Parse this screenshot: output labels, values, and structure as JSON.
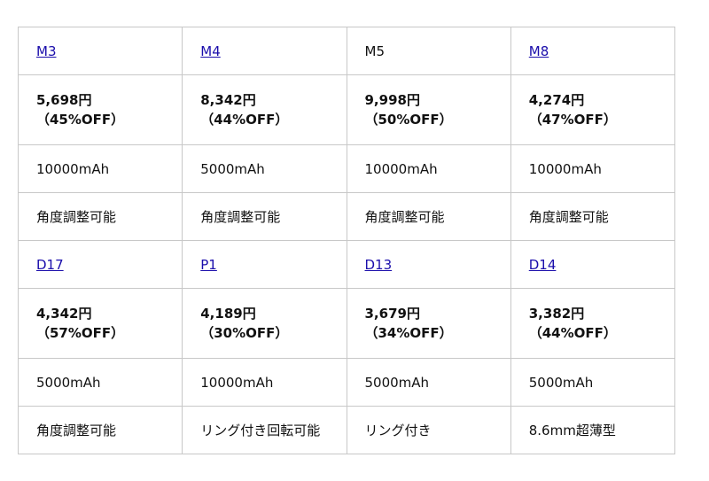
{
  "groups": [
    {
      "products": [
        {
          "name": "M3",
          "link": true,
          "price": "5,698円",
          "discount": "（45%OFF）",
          "capacity": "10000mAh",
          "feature": "角度調整可能"
        },
        {
          "name": "M4",
          "link": true,
          "price": "8,342円",
          "discount": "（44%OFF）",
          "capacity": "5000mAh",
          "feature": "角度調整可能"
        },
        {
          "name": "M5",
          "link": false,
          "price": "9,998円",
          "discount": "（50%OFF）",
          "capacity": "10000mAh",
          "feature": "角度調整可能"
        },
        {
          "name": "M8",
          "link": true,
          "price": "4,274円",
          "discount": "（47%OFF）",
          "capacity": "10000mAh",
          "feature": "角度調整可能"
        }
      ]
    },
    {
      "products": [
        {
          "name": "D17",
          "link": true,
          "price": "4,342円",
          "discount": "（57%OFF）",
          "capacity": "5000mAh",
          "feature": "角度調整可能"
        },
        {
          "name": "P1",
          "link": true,
          "price": "4,189円",
          "discount": "（30%OFF）",
          "capacity": "10000mAh",
          "feature": "リング付き回転可能"
        },
        {
          "name": "D13",
          "link": true,
          "price": "3,679円",
          "discount": "（34%OFF）",
          "capacity": "5000mAh",
          "feature": "リング付き"
        },
        {
          "name": "D14",
          "link": true,
          "price": "3,382円",
          "discount": "（44%OFF）",
          "capacity": "5000mAh",
          "feature": "8.6mm超薄型"
        }
      ]
    }
  ],
  "colors": {
    "link": "#1a0dab",
    "border": "#c8c8c8"
  }
}
